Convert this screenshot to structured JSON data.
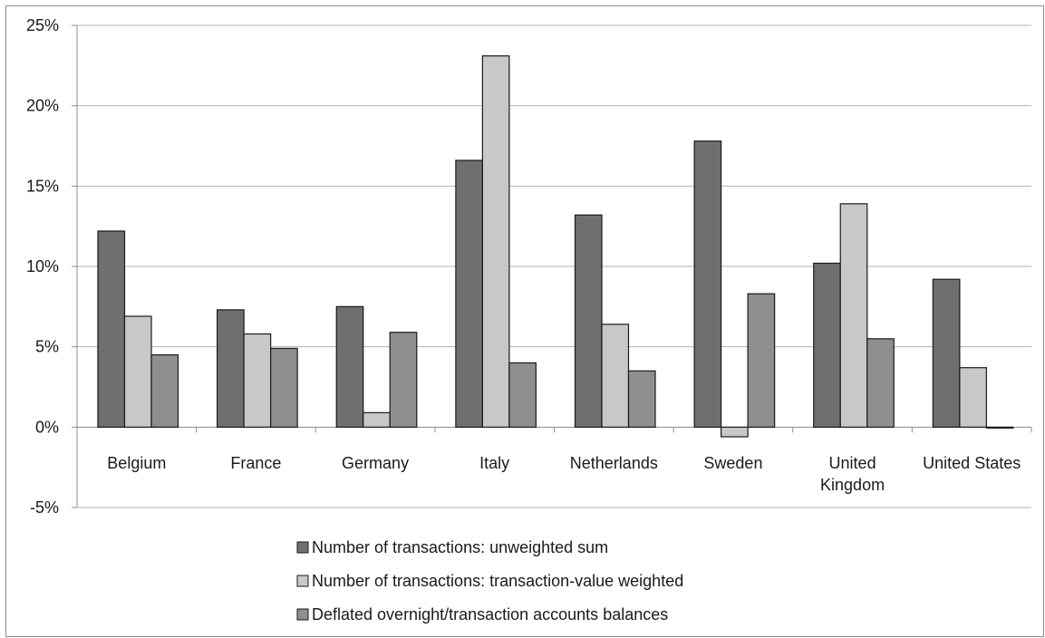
{
  "chart_data": {
    "type": "bar",
    "title": "",
    "xlabel": "",
    "ylabel": "",
    "ylim": [
      -5,
      25
    ],
    "y_ticks": [
      -5,
      0,
      5,
      10,
      15,
      20,
      25
    ],
    "y_tick_labels": [
      "-5%",
      "0%",
      "5%",
      "10%",
      "15%",
      "20%",
      "25%"
    ],
    "grid": true,
    "legend_position": "bottom",
    "categories": [
      [
        "Belgium"
      ],
      [
        "France"
      ],
      [
        "Germany"
      ],
      [
        "Italy"
      ],
      [
        "Netherlands"
      ],
      [
        "Sweden"
      ],
      [
        "United",
        "Kingdom"
      ],
      [
        "United States"
      ]
    ],
    "series": [
      {
        "name": "Number of transactions: unweighted sum",
        "color": "#6f6f6f",
        "values": [
          12.2,
          7.3,
          7.5,
          16.6,
          13.2,
          17.8,
          10.2,
          9.2
        ]
      },
      {
        "name": "Number of transactions: transaction-value weighted",
        "color": "#c8c8c8",
        "values": [
          6.9,
          5.8,
          0.9,
          23.1,
          6.4,
          -0.6,
          13.9,
          3.7
        ]
      },
      {
        "name": "Deflated overnight/transaction accounts balances",
        "color": "#8f8f8f",
        "values": [
          4.5,
          4.9,
          5.9,
          4.0,
          3.5,
          8.3,
          5.5,
          0.0
        ]
      }
    ]
  }
}
